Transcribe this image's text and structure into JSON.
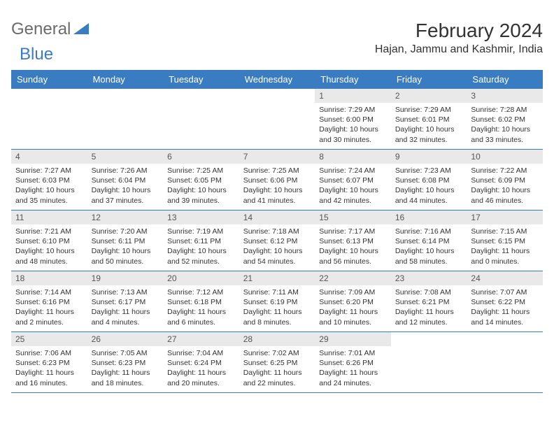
{
  "brand": {
    "word1": "General",
    "word2": "Blue",
    "word1_color": "#6b6b6b",
    "word2_color": "#3a7cc2",
    "tri_color": "#3a7cc2"
  },
  "title": "February 2024",
  "location": "Hajan, Jammu and Kashmir, India",
  "colors": {
    "header_bg": "#3a7cc2",
    "header_text": "#ffffff",
    "daynum_bg": "#e9e9e9",
    "border": "#3a7cc2",
    "text": "#333333",
    "bg": "#ffffff"
  },
  "dayNames": [
    "Sunday",
    "Monday",
    "Tuesday",
    "Wednesday",
    "Thursday",
    "Friday",
    "Saturday"
  ],
  "weeks": [
    [
      {
        "n": "",
        "lines": []
      },
      {
        "n": "",
        "lines": []
      },
      {
        "n": "",
        "lines": []
      },
      {
        "n": "",
        "lines": []
      },
      {
        "n": "1",
        "lines": [
          "Sunrise: 7:29 AM",
          "Sunset: 6:00 PM",
          "Daylight: 10 hours and 30 minutes."
        ]
      },
      {
        "n": "2",
        "lines": [
          "Sunrise: 7:29 AM",
          "Sunset: 6:01 PM",
          "Daylight: 10 hours and 32 minutes."
        ]
      },
      {
        "n": "3",
        "lines": [
          "Sunrise: 7:28 AM",
          "Sunset: 6:02 PM",
          "Daylight: 10 hours and 33 minutes."
        ]
      }
    ],
    [
      {
        "n": "4",
        "lines": [
          "Sunrise: 7:27 AM",
          "Sunset: 6:03 PM",
          "Daylight: 10 hours and 35 minutes."
        ]
      },
      {
        "n": "5",
        "lines": [
          "Sunrise: 7:26 AM",
          "Sunset: 6:04 PM",
          "Daylight: 10 hours and 37 minutes."
        ]
      },
      {
        "n": "6",
        "lines": [
          "Sunrise: 7:25 AM",
          "Sunset: 6:05 PM",
          "Daylight: 10 hours and 39 minutes."
        ]
      },
      {
        "n": "7",
        "lines": [
          "Sunrise: 7:25 AM",
          "Sunset: 6:06 PM",
          "Daylight: 10 hours and 41 minutes."
        ]
      },
      {
        "n": "8",
        "lines": [
          "Sunrise: 7:24 AM",
          "Sunset: 6:07 PM",
          "Daylight: 10 hours and 42 minutes."
        ]
      },
      {
        "n": "9",
        "lines": [
          "Sunrise: 7:23 AM",
          "Sunset: 6:08 PM",
          "Daylight: 10 hours and 44 minutes."
        ]
      },
      {
        "n": "10",
        "lines": [
          "Sunrise: 7:22 AM",
          "Sunset: 6:09 PM",
          "Daylight: 10 hours and 46 minutes."
        ]
      }
    ],
    [
      {
        "n": "11",
        "lines": [
          "Sunrise: 7:21 AM",
          "Sunset: 6:10 PM",
          "Daylight: 10 hours and 48 minutes."
        ]
      },
      {
        "n": "12",
        "lines": [
          "Sunrise: 7:20 AM",
          "Sunset: 6:11 PM",
          "Daylight: 10 hours and 50 minutes."
        ]
      },
      {
        "n": "13",
        "lines": [
          "Sunrise: 7:19 AM",
          "Sunset: 6:11 PM",
          "Daylight: 10 hours and 52 minutes."
        ]
      },
      {
        "n": "14",
        "lines": [
          "Sunrise: 7:18 AM",
          "Sunset: 6:12 PM",
          "Daylight: 10 hours and 54 minutes."
        ]
      },
      {
        "n": "15",
        "lines": [
          "Sunrise: 7:17 AM",
          "Sunset: 6:13 PM",
          "Daylight: 10 hours and 56 minutes."
        ]
      },
      {
        "n": "16",
        "lines": [
          "Sunrise: 7:16 AM",
          "Sunset: 6:14 PM",
          "Daylight: 10 hours and 58 minutes."
        ]
      },
      {
        "n": "17",
        "lines": [
          "Sunrise: 7:15 AM",
          "Sunset: 6:15 PM",
          "Daylight: 11 hours and 0 minutes."
        ]
      }
    ],
    [
      {
        "n": "18",
        "lines": [
          "Sunrise: 7:14 AM",
          "Sunset: 6:16 PM",
          "Daylight: 11 hours and 2 minutes."
        ]
      },
      {
        "n": "19",
        "lines": [
          "Sunrise: 7:13 AM",
          "Sunset: 6:17 PM",
          "Daylight: 11 hours and 4 minutes."
        ]
      },
      {
        "n": "20",
        "lines": [
          "Sunrise: 7:12 AM",
          "Sunset: 6:18 PM",
          "Daylight: 11 hours and 6 minutes."
        ]
      },
      {
        "n": "21",
        "lines": [
          "Sunrise: 7:11 AM",
          "Sunset: 6:19 PM",
          "Daylight: 11 hours and 8 minutes."
        ]
      },
      {
        "n": "22",
        "lines": [
          "Sunrise: 7:09 AM",
          "Sunset: 6:20 PM",
          "Daylight: 11 hours and 10 minutes."
        ]
      },
      {
        "n": "23",
        "lines": [
          "Sunrise: 7:08 AM",
          "Sunset: 6:21 PM",
          "Daylight: 11 hours and 12 minutes."
        ]
      },
      {
        "n": "24",
        "lines": [
          "Sunrise: 7:07 AM",
          "Sunset: 6:22 PM",
          "Daylight: 11 hours and 14 minutes."
        ]
      }
    ],
    [
      {
        "n": "25",
        "lines": [
          "Sunrise: 7:06 AM",
          "Sunset: 6:23 PM",
          "Daylight: 11 hours and 16 minutes."
        ]
      },
      {
        "n": "26",
        "lines": [
          "Sunrise: 7:05 AM",
          "Sunset: 6:23 PM",
          "Daylight: 11 hours and 18 minutes."
        ]
      },
      {
        "n": "27",
        "lines": [
          "Sunrise: 7:04 AM",
          "Sunset: 6:24 PM",
          "Daylight: 11 hours and 20 minutes."
        ]
      },
      {
        "n": "28",
        "lines": [
          "Sunrise: 7:02 AM",
          "Sunset: 6:25 PM",
          "Daylight: 11 hours and 22 minutes."
        ]
      },
      {
        "n": "29",
        "lines": [
          "Sunrise: 7:01 AM",
          "Sunset: 6:26 PM",
          "Daylight: 11 hours and 24 minutes."
        ]
      },
      {
        "n": "",
        "lines": []
      },
      {
        "n": "",
        "lines": []
      }
    ]
  ]
}
